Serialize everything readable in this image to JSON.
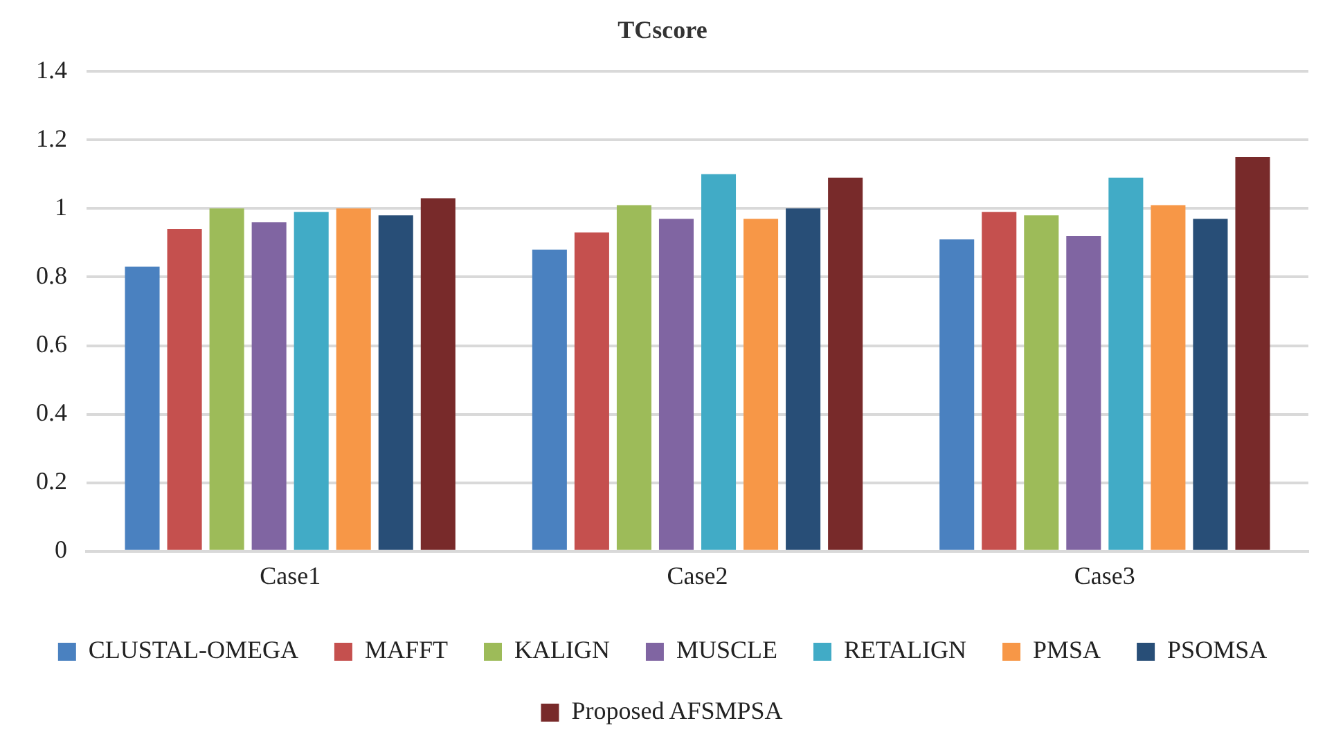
{
  "chart_data": {
    "type": "bar",
    "title": "TCscore",
    "categories": [
      "Case1",
      "Case2",
      "Case3"
    ],
    "series": [
      {
        "name": "CLUSTAL-OMEGA",
        "color": "#4a81c0",
        "values": [
          0.83,
          0.88,
          0.91
        ]
      },
      {
        "name": "MAFFT",
        "color": "#c5504e",
        "values": [
          0.94,
          0.93,
          0.99
        ]
      },
      {
        "name": "KALIGN",
        "color": "#9dbb59",
        "values": [
          1.0,
          1.01,
          0.98
        ]
      },
      {
        "name": "MUSCLE",
        "color": "#8065a2",
        "values": [
          0.96,
          0.97,
          0.92
        ]
      },
      {
        "name": "RETALIGN",
        "color": "#41abc6",
        "values": [
          0.99,
          1.1,
          1.09
        ]
      },
      {
        "name": "PMSA",
        "color": "#f79747",
        "values": [
          1.0,
          0.97,
          1.01
        ]
      },
      {
        "name": "PSOMSA",
        "color": "#284e77",
        "values": [
          0.98,
          1.0,
          0.97
        ]
      },
      {
        "name": "Proposed AFSMPSA",
        "color": "#782a2a",
        "values": [
          1.03,
          1.09,
          1.15
        ]
      }
    ],
    "ylim": [
      0,
      1.4
    ],
    "yticks": [
      0,
      0.2,
      0.4,
      0.6,
      0.8,
      1,
      1.2,
      1.4
    ],
    "grid": "y",
    "legend": "bottom"
  }
}
